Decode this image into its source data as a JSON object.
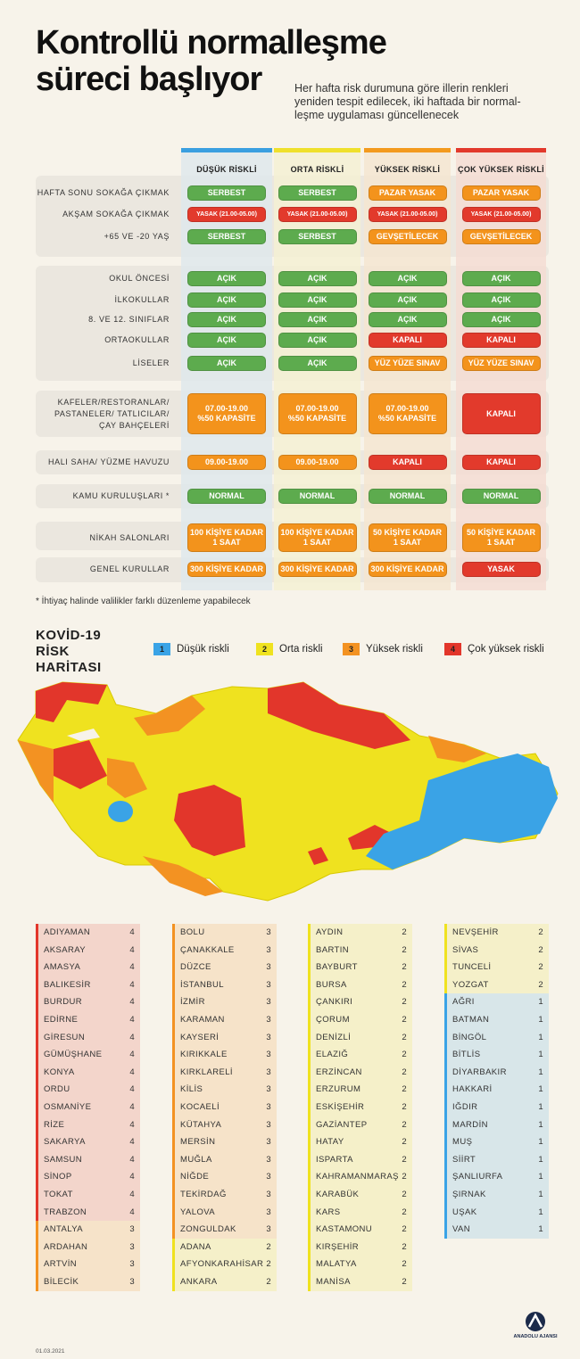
{
  "header": {
    "title": "Kontrollü normalleşme süreci başlıyor",
    "subtitle": [
      "Her hafta risk durumuna göre illerin renkleri",
      "yeniden tespit edilecek, iki haftada bir normal-",
      "leşme uygulaması güncellenecek"
    ]
  },
  "table": {
    "columns": [
      {
        "label": "DÜŞÜK RİSKLİ",
        "color": "#3a9fe0"
      },
      {
        "label": "ORTA RİSKLİ",
        "color": "#efe02c"
      },
      {
        "label": "YÜKSEK RİSKLİ",
        "color": "#f39a1e"
      },
      {
        "label": "ÇOK YÜKSEK RİSKLİ",
        "color": "#e2392c"
      }
    ],
    "groups": [
      {
        "rows": [
          {
            "label": "HAFTA SONU SOKAĞA ÇIKMAK",
            "cells": [
              "SERBEST",
              "SERBEST",
              "PAZAR YASAK",
              "PAZAR YASAK"
            ],
            "colors": [
              "#5dab4e",
              "#5dab4e",
              "#f3931c",
              "#f3931c"
            ]
          },
          {
            "label": "AKŞAM SOKAĞA ÇIKMAK",
            "cells": [
              "YASAK (21.00-05.00)",
              "YASAK (21.00-05.00)",
              "YASAK (21.00-05.00)",
              "YASAK (21.00-05.00)"
            ],
            "colors": [
              "#e23a2c",
              "#e23a2c",
              "#e23a2c",
              "#e23a2c"
            ]
          },
          {
            "label": "+65 VE -20 YAŞ",
            "cells": [
              "SERBEST",
              "SERBEST",
              "GEVŞETİLECEK",
              "GEVŞETİLECEK"
            ],
            "colors": [
              "#5dab4e",
              "#5dab4e",
              "#f3931c",
              "#f3931c"
            ]
          }
        ]
      },
      {
        "rows": [
          {
            "label": "OKUL ÖNCESİ",
            "cells": [
              "AÇIK",
              "AÇIK",
              "AÇIK",
              "AÇIK"
            ],
            "colors": [
              "#5dab4e",
              "#5dab4e",
              "#5dab4e",
              "#5dab4e"
            ]
          },
          {
            "label": "İLKOKULLAR",
            "cells": [
              "AÇIK",
              "AÇIK",
              "AÇIK",
              "AÇIK"
            ],
            "colors": [
              "#5dab4e",
              "#5dab4e",
              "#5dab4e",
              "#5dab4e"
            ]
          },
          {
            "label": "8. VE 12. SINIFLAR",
            "cells": [
              "AÇIK",
              "AÇIK",
              "AÇIK",
              "AÇIK"
            ],
            "colors": [
              "#5dab4e",
              "#5dab4e",
              "#5dab4e",
              "#5dab4e"
            ]
          },
          {
            "label": "ORTAOKULLAR",
            "cells": [
              "AÇIK",
              "AÇIK",
              "KAPALI",
              "KAPALI"
            ],
            "colors": [
              "#5dab4e",
              "#5dab4e",
              "#e23a2c",
              "#e23a2c"
            ]
          },
          {
            "label": "LİSELER",
            "cells": [
              "AÇIK",
              "AÇIK",
              "YÜZ YÜZE SINAV",
              "YÜZ YÜZE SINAV"
            ],
            "colors": [
              "#5dab4e",
              "#5dab4e",
              "#f3931c",
              "#f3931c"
            ]
          }
        ]
      },
      {
        "rows": [
          {
            "label": "KAFELER/RESTORANLAR/\nPASTANELER/ TATLICILAR/\nÇAY BAHÇELERİ",
            "cells": [
              "07.00-19.00\n%50 KAPASİTE",
              "07.00-19.00\n%50 KAPASİTE",
              "07.00-19.00\n%50 KAPASİTE",
              "KAPALI"
            ],
            "colors": [
              "#f3931c",
              "#f3931c",
              "#f3931c",
              "#e23a2c"
            ]
          }
        ]
      },
      {
        "rows": [
          {
            "label": "HALI SAHA/ YÜZME HAVUZU",
            "cells": [
              "09.00-19.00",
              "09.00-19.00",
              "KAPALI",
              "KAPALI"
            ],
            "colors": [
              "#f3931c",
              "#f3931c",
              "#e23a2c",
              "#e23a2c"
            ]
          }
        ]
      },
      {
        "rows": [
          {
            "label": "KAMU KURULUŞLARI *",
            "cells": [
              "NORMAL",
              "NORMAL",
              "NORMAL",
              "NORMAL"
            ],
            "colors": [
              "#5dab4e",
              "#5dab4e",
              "#5dab4e",
              "#5dab4e"
            ]
          }
        ]
      },
      {
        "rows": [
          {
            "label": "NİKAH SALONLARI",
            "cells": [
              "100 KİŞİYE KADAR\n1 SAAT",
              "100 KİŞİYE KADAR\n1 SAAT",
              "50 KİŞİYE KADAR\n1 SAAT",
              "50 KİŞİYE KADAR\n1 SAAT"
            ],
            "colors": [
              "#f3931c",
              "#f3931c",
              "#f3931c",
              "#f3931c"
            ]
          }
        ]
      },
      {
        "rows": [
          {
            "label": "GENEL KURULLAR",
            "cells": [
              "300 KİŞİYE KADAR",
              "300 KİŞİYE KADAR",
              "300 KİŞİYE KADAR",
              "YASAK"
            ],
            "colors": [
              "#f3931c",
              "#f3931c",
              "#f3931c",
              "#e23a2c"
            ]
          }
        ]
      }
    ],
    "footnote": "* İhtiyaç halinde valilikler farklı düzenleme yapabilecek"
  },
  "map": {
    "title": "KOVİD-19 RİSK HARİTASI",
    "legend": [
      {
        "level": 1,
        "label": "Düşük riskli",
        "color": "#3aa3e6"
      },
      {
        "level": 2,
        "label": "Orta riskli",
        "color": "#efe21f"
      },
      {
        "level": 3,
        "label": "Yüksek riskli",
        "color": "#f39222"
      },
      {
        "level": 4,
        "label": "Çok yüksek riskli",
        "color": "#e2362b"
      }
    ]
  },
  "provinces": [
    {
      "name": "ADIYAMAN",
      "risk": 4
    },
    {
      "name": "AKSARAY",
      "risk": 4
    },
    {
      "name": "AMASYA",
      "risk": 4
    },
    {
      "name": "BALIKESİR",
      "risk": 4
    },
    {
      "name": "BURDUR",
      "risk": 4
    },
    {
      "name": "EDİRNE",
      "risk": 4
    },
    {
      "name": "GİRESUN",
      "risk": 4
    },
    {
      "name": "GÜMÜŞHANE",
      "risk": 4
    },
    {
      "name": "KONYA",
      "risk": 4
    },
    {
      "name": "ORDU",
      "risk": 4
    },
    {
      "name": "OSMANİYE",
      "risk": 4
    },
    {
      "name": "RİZE",
      "risk": 4
    },
    {
      "name": "SAKARYA",
      "risk": 4
    },
    {
      "name": "SAMSUN",
      "risk": 4
    },
    {
      "name": "SİNOP",
      "risk": 4
    },
    {
      "name": "TOKAT",
      "risk": 4
    },
    {
      "name": "TRABZON",
      "risk": 4
    },
    {
      "name": "ANTALYA",
      "risk": 3
    },
    {
      "name": "ARDAHAN",
      "risk": 3
    },
    {
      "name": "ARTVİN",
      "risk": 3
    },
    {
      "name": "BİLECİK",
      "risk": 3
    },
    {
      "name": "BOLU",
      "risk": 3
    },
    {
      "name": "ÇANAKKALE",
      "risk": 3
    },
    {
      "name": "DÜZCE",
      "risk": 3
    },
    {
      "name": "İSTANBUL",
      "risk": 3
    },
    {
      "name": "İZMİR",
      "risk": 3
    },
    {
      "name": "KARAMAN",
      "risk": 3
    },
    {
      "name": "KAYSERİ",
      "risk": 3
    },
    {
      "name": "KIRIKKALE",
      "risk": 3
    },
    {
      "name": "KIRKLARELİ",
      "risk": 3
    },
    {
      "name": "KİLİS",
      "risk": 3
    },
    {
      "name": "KOCAELİ",
      "risk": 3
    },
    {
      "name": "KÜTAHYA",
      "risk": 3
    },
    {
      "name": "MERSİN",
      "risk": 3
    },
    {
      "name": "MUĞLA",
      "risk": 3
    },
    {
      "name": "NİĞDE",
      "risk": 3
    },
    {
      "name": "TEKİRDAĞ",
      "risk": 3
    },
    {
      "name": "YALOVA",
      "risk": 3
    },
    {
      "name": "ZONGULDAK",
      "risk": 3
    },
    {
      "name": "ADANA",
      "risk": 2
    },
    {
      "name": "AFYONKARAHİSAR",
      "risk": 2
    },
    {
      "name": "ANKARA",
      "risk": 2
    },
    {
      "name": "AYDIN",
      "risk": 2
    },
    {
      "name": "BARTIN",
      "risk": 2
    },
    {
      "name": "BAYBURT",
      "risk": 2
    },
    {
      "name": "BURSA",
      "risk": 2
    },
    {
      "name": "ÇANKIRI",
      "risk": 2
    },
    {
      "name": "ÇORUM",
      "risk": 2
    },
    {
      "name": "DENİZLİ",
      "risk": 2
    },
    {
      "name": "ELAZIĞ",
      "risk": 2
    },
    {
      "name": "ERZİNCAN",
      "risk": 2
    },
    {
      "name": "ERZURUM",
      "risk": 2
    },
    {
      "name": "ESKİŞEHİR",
      "risk": 2
    },
    {
      "name": "GAZİANTEP",
      "risk": 2
    },
    {
      "name": "HATAY",
      "risk": 2
    },
    {
      "name": "ISPARTA",
      "risk": 2
    },
    {
      "name": "KAHRAMANMARAŞ",
      "risk": 2
    },
    {
      "name": "KARABÜK",
      "risk": 2
    },
    {
      "name": "KARS",
      "risk": 2
    },
    {
      "name": "KASTAMONU",
      "risk": 2
    },
    {
      "name": "KIRŞEHİR",
      "risk": 2
    },
    {
      "name": "MALATYA",
      "risk": 2
    },
    {
      "name": "MANİSA",
      "risk": 2
    },
    {
      "name": "NEVŞEHİR",
      "risk": 2
    },
    {
      "name": "SİVAS",
      "risk": 2
    },
    {
      "name": "TUNCELİ",
      "risk": 2
    },
    {
      "name": "YOZGAT",
      "risk": 2
    },
    {
      "name": "AĞRI",
      "risk": 1
    },
    {
      "name": "BATMAN",
      "risk": 1
    },
    {
      "name": "BİNGÖL",
      "risk": 1
    },
    {
      "name": "BİTLİS",
      "risk": 1
    },
    {
      "name": "DİYARBAKIR",
      "risk": 1
    },
    {
      "name": "HAKKARİ",
      "risk": 1
    },
    {
      "name": "IĞDIR",
      "risk": 1
    },
    {
      "name": "MARDİN",
      "risk": 1
    },
    {
      "name": "MUŞ",
      "risk": 1
    },
    {
      "name": "SİİRT",
      "risk": 1
    },
    {
      "name": "ŞANLIURFA",
      "risk": 1
    },
    {
      "name": "ŞIRNAK",
      "risk": 1
    },
    {
      "name": "UŞAK",
      "risk": 1
    },
    {
      "name": "VAN",
      "risk": 1
    }
  ],
  "footer": {
    "date": "01.03.2021",
    "logo": "ANADOLU AJANSI"
  }
}
